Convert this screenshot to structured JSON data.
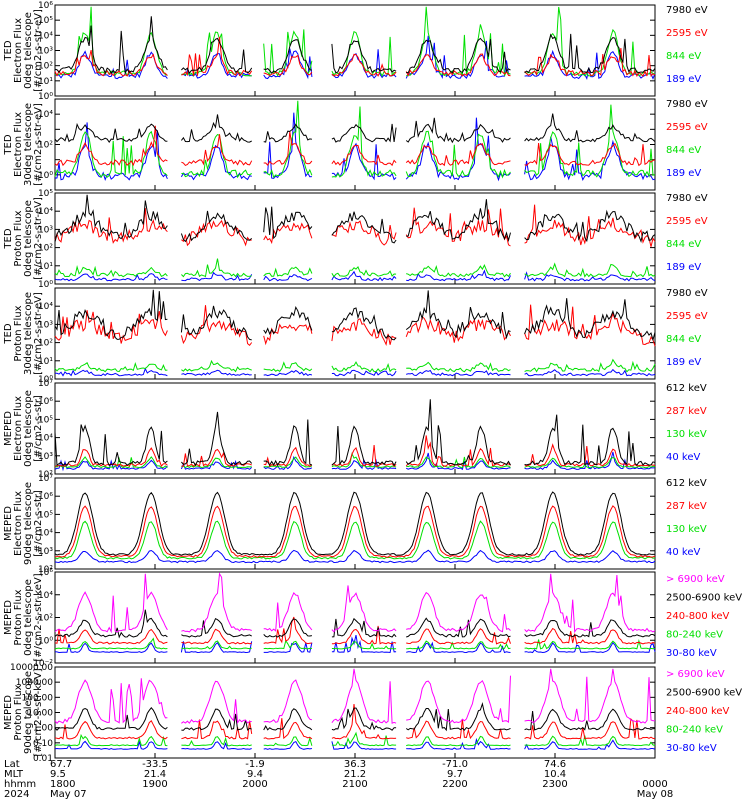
{
  "colors": {
    "black": "#000000",
    "red": "#ff0000",
    "green": "#00e000",
    "blue": "#0000ff",
    "magenta": "#ff00ff",
    "axis": "#000000"
  },
  "x_axis": {
    "rows": [
      {
        "label": "Lat",
        "values": [
          "67.7",
          "-33.5",
          "-1.9",
          "36.3",
          "-71.0",
          "74.6",
          ""
        ]
      },
      {
        "label": "MLT",
        "values": [
          "9.5",
          "21.4",
          "9.4",
          "21.2",
          "9.7",
          "10.4",
          ""
        ]
      },
      {
        "label": "hhmm",
        "values": [
          "1800",
          "1900",
          "2000",
          "2100",
          "2200",
          "2300",
          "0000"
        ]
      },
      {
        "label": "2024",
        "values": [
          "May 07",
          "",
          "",
          "",
          "",
          "",
          "May 08"
        ]
      }
    ]
  },
  "panels": [
    {
      "ylabel": [
        "TED",
        "Electron Flux",
        "0deg telescope",
        "[#/cm2-s-str-eV]"
      ],
      "yticks": [
        "10⁶",
        "10⁵",
        "10⁴",
        "10³",
        "10²",
        "10¹",
        "10⁰"
      ],
      "legend": [
        {
          "text": "7980 eV",
          "color": "black"
        },
        {
          "text": "2595 eV",
          "color": "red"
        },
        {
          "text": "844 eV",
          "color": "green"
        },
        {
          "text": "189 eV",
          "color": "blue"
        }
      ]
    },
    {
      "ylabel": [
        "TED",
        "Electron Flux",
        "30deg telescope",
        "[#/cm2-s-str-eV]"
      ],
      "yticks": [
        "",
        "10⁴",
        "",
        "10²",
        "",
        "10⁰",
        ""
      ],
      "legend": [
        {
          "text": "7980 eV",
          "color": "black"
        },
        {
          "text": "2595 eV",
          "color": "red"
        },
        {
          "text": "844 eV",
          "color": "green"
        },
        {
          "text": "189 eV",
          "color": "blue"
        }
      ]
    },
    {
      "ylabel": [
        "TED",
        "Proton Flux",
        "0deg telescope",
        "[#/cm2-s-str-eV]"
      ],
      "yticks": [
        "10⁵",
        "10⁴",
        "10³",
        "10²",
        "10¹",
        "10⁰"
      ],
      "legend": [
        {
          "text": "7980 eV",
          "color": "black"
        },
        {
          "text": "2595 eV",
          "color": "red"
        },
        {
          "text": "844 eV",
          "color": "green"
        },
        {
          "text": "189 eV",
          "color": "blue"
        }
      ]
    },
    {
      "ylabel": [
        "TED",
        "Proton Flux",
        "30deg telescope",
        "[#/cm2-s-str-eV]"
      ],
      "yticks": [
        "",
        "10⁴",
        "10³",
        "10²",
        "10¹",
        "10⁰"
      ],
      "legend": [
        {
          "text": "7980 eV",
          "color": "black"
        },
        {
          "text": "2595 eV",
          "color": "red"
        },
        {
          "text": "844 eV",
          "color": "green"
        },
        {
          "text": "189 eV",
          "color": "blue"
        }
      ]
    },
    {
      "ylabel": [
        "MEPED",
        "Electron Flux",
        "0deg telescope",
        "[#/cm2-s-str]"
      ],
      "yticks": [
        "10⁷",
        "10⁶",
        "10⁵",
        "10⁴",
        "10³",
        "10²"
      ],
      "legend": [
        {
          "text": "612 keV",
          "color": "black"
        },
        {
          "text": "287 keV",
          "color": "red"
        },
        {
          "text": "130 keV",
          "color": "green"
        },
        {
          "text": "40 keV",
          "color": "blue"
        }
      ]
    },
    {
      "ylabel": [
        "MEPED",
        "Electron Flux",
        "90deg telescope",
        "[#/cm2-s-str]"
      ],
      "yticks": [
        "10⁷",
        "10⁶",
        "10⁵",
        "10⁴",
        "10³",
        "10²"
      ],
      "legend": [
        {
          "text": "612 keV",
          "color": "black"
        },
        {
          "text": "287 keV",
          "color": "red"
        },
        {
          "text": "130 keV",
          "color": "green"
        },
        {
          "text": "40 keV",
          "color": "blue"
        }
      ]
    },
    {
      "ylabel": [
        "MEPED",
        "Proton Flux",
        "0deg telescope",
        "[#/cm2-s-str-keV]"
      ],
      "yticks": [
        "10⁶",
        "10⁴",
        "10²",
        "10⁰",
        "10⁻²"
      ],
      "legend": [
        {
          "text": "> 6900 keV",
          "color": "magenta"
        },
        {
          "text": "2500-6900 keV",
          "color": "black"
        },
        {
          "text": "240-800 keV",
          "color": "red"
        },
        {
          "text": "80-240 keV",
          "color": "green"
        },
        {
          "text": "30-80 keV",
          "color": "blue"
        }
      ]
    },
    {
      "ylabel": [
        "MEPED",
        "Proton Flux",
        "90deg telescope",
        "[#/cm2-s-str-keV]"
      ],
      "yticks": [
        "10000.00",
        "1000.00",
        "100.00",
        "10.00",
        "1.00",
        "0.10",
        "0.01"
      ],
      "legend": [
        {
          "text": "> 6900 keV",
          "color": "magenta"
        },
        {
          "text": "2500-6900 keV",
          "color": "black"
        },
        {
          "text": "240-800 keV",
          "color": "red"
        },
        {
          "text": "80-240 keV",
          "color": "green"
        },
        {
          "text": "30-80 keV",
          "color": "blue"
        }
      ]
    }
  ],
  "chart_data": {
    "type": "line",
    "panels": 8,
    "x": [
      "1800",
      "1900",
      "2000",
      "2100",
      "2200",
      "2300",
      "0000"
    ],
    "series_levels": {
      "ted_electron_0": {
        "7980 eV": 1.0,
        "2595 eV": 1.3,
        "844 eV": 1.4,
        "189 eV": 1.6
      },
      "ted_electron_30": {
        "7980 eV": 0.8,
        "2595 eV": 1.2,
        "844 eV": 1.5,
        "189 eV": 2.0
      },
      "ted_proton_0": {
        "7980 eV": 0.3,
        "2595 eV": 0.6,
        "844 eV": 2.5,
        "189 eV": 2.8
      },
      "ted_proton_30": {
        "7980 eV": 0.4,
        "2595 eV": 0.7,
        "844 eV": 2.3,
        "189 eV": 2.7
      },
      "meped_electron_0": {
        "612 keV": 2.1,
        "287 keV": 2.2,
        "130 keV": 2.3,
        "40 keV": 2.5
      },
      "meped_electron_90": {
        "612 keV": 2.3,
        "287 keV": 3.0,
        "130 keV": 3.6,
        "40 keV": 4.2
      },
      "meped_proton_0": {
        "> 6900 keV": -1.5,
        "2500-6900 keV": -1.0,
        "240-800 keV": -0.7,
        "80-240 keV": -0.2,
        "30-80 keV": 0.5
      },
      "meped_proton_90": {
        "> 6900 keV": -1.5,
        "2500-6900 keV": -1.0,
        "240-800 keV": -0.5,
        "80-240 keV": 0.0,
        "30-80 keV": 0.8
      }
    }
  }
}
